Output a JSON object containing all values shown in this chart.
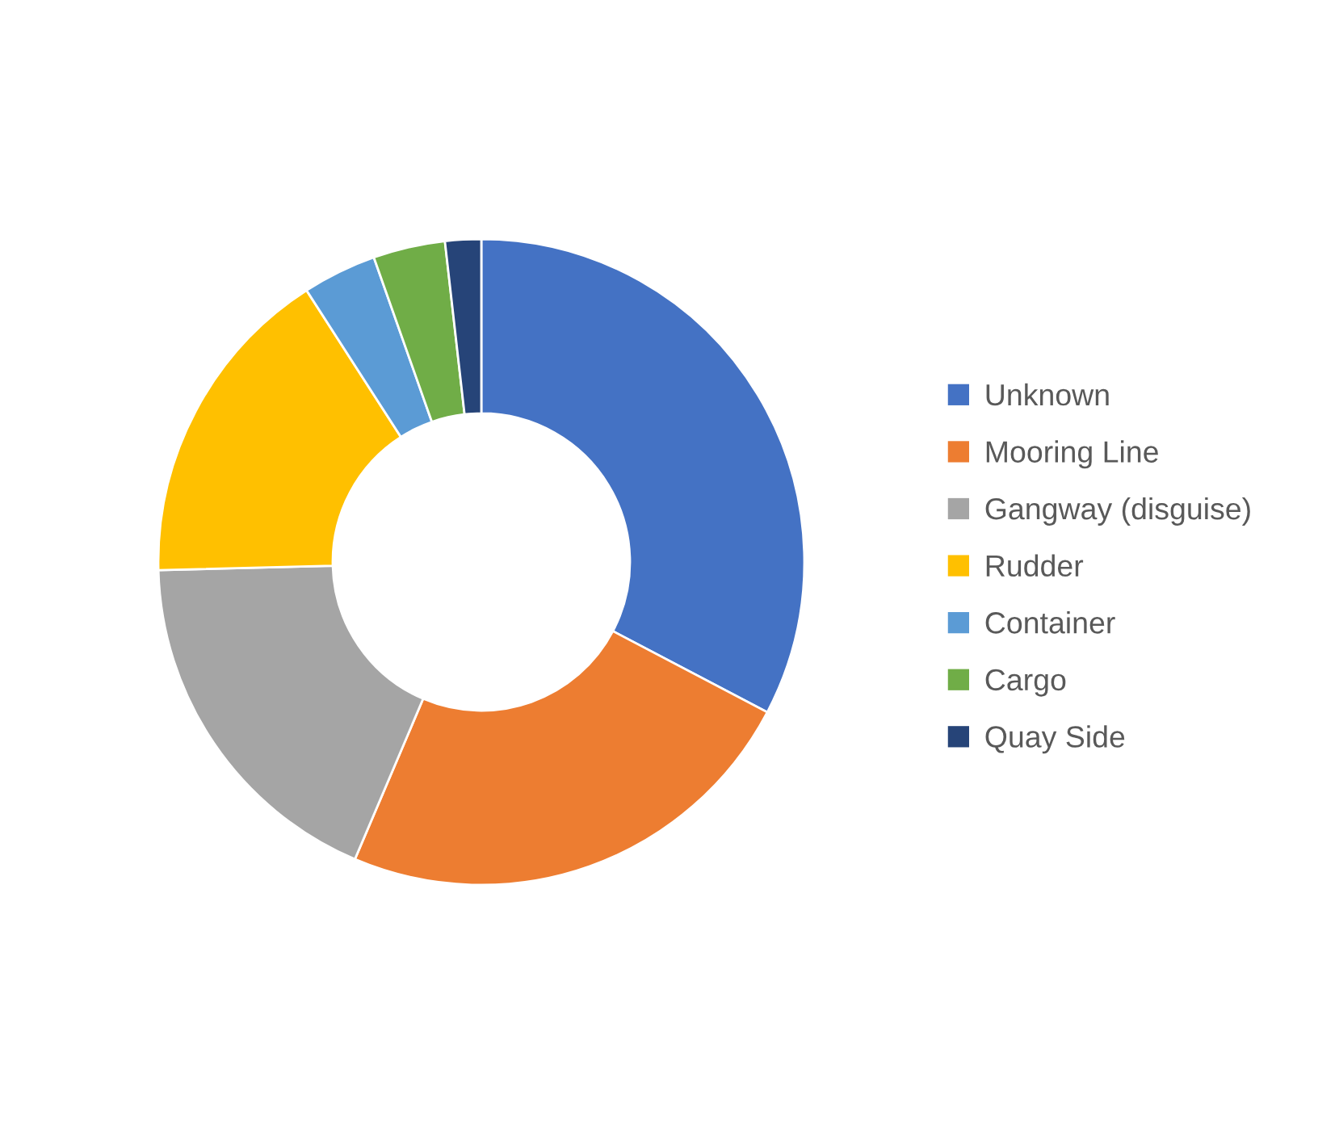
{
  "chart_data": {
    "type": "donut",
    "categories": [
      "Unknown",
      "Mooring Line",
      "Gangway (disguise)",
      "Rudder",
      "Container",
      "Cargo",
      "Quay Side"
    ],
    "values": [
      32.7,
      23.7,
      18.2,
      16.3,
      3.7,
      3.6,
      1.8
    ],
    "colors": [
      "#4472c4",
      "#ed7d31",
      "#a5a5a5",
      "#ffc000",
      "#5b9bd5",
      "#70ad47",
      "#264478"
    ],
    "legend": "right"
  }
}
